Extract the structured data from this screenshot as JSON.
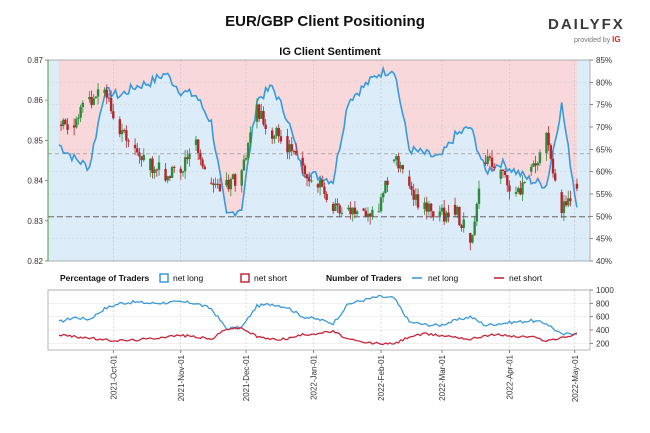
{
  "header": {
    "title": "EUR/GBP Client Positioning",
    "logo_text": "DAILYFX",
    "provided_by": "provided by",
    "provider": "IG"
  },
  "colors": {
    "net_long": "#3a9ad9",
    "net_short": "#c8263a",
    "long_fill": "#dcedf9",
    "short_fill": "#f8d8da",
    "candle_up": "#2e8b3a",
    "candle_down": "#b3262c",
    "axis_left": "#4a9a3a"
  },
  "chart_data": [
    {
      "type": "line",
      "title": "IG Client Sentiment",
      "description_series": [
        "EUR/GBP price (candlestick)",
        "net long %"
      ],
      "left_axis": {
        "ticks": [
          "0.87",
          "0.86",
          "0.85",
          "0.84",
          "0.83",
          "0.82"
        ],
        "ylim": [
          0.82,
          0.87
        ]
      },
      "right_axis": {
        "ticks": [
          "85%",
          "80%",
          "75%",
          "70%",
          "65%",
          "60%",
          "55%",
          "50%",
          "45%",
          "40%"
        ],
        "ylim": [
          40,
          85
        ]
      },
      "reference_lines": {
        "price": 0.831,
        "percent": 64
      },
      "price": {
        "weeks": [
          "2021-09-06",
          "2021-09-13",
          "2021-09-20",
          "2021-09-27",
          "2021-10-04",
          "2021-10-11",
          "2021-10-18",
          "2021-10-25",
          "2021-11-01",
          "2021-11-08",
          "2021-11-15",
          "2021-11-22",
          "2021-11-29",
          "2021-12-06",
          "2021-12-13",
          "2021-12-20",
          "2021-12-27",
          "2022-01-03",
          "2022-01-10",
          "2022-01-17",
          "2022-01-24",
          "2022-01-31",
          "2022-02-07",
          "2022-02-14",
          "2022-02-21",
          "2022-02-28",
          "2022-03-07",
          "2022-03-14",
          "2022-03-21",
          "2022-03-28",
          "2022-04-04",
          "2022-04-11",
          "2022-04-18",
          "2022-04-25",
          "2022-05-02"
        ],
        "close": [
          0.853,
          0.855,
          0.86,
          0.864,
          0.852,
          0.848,
          0.844,
          0.842,
          0.843,
          0.849,
          0.838,
          0.839,
          0.841,
          0.858,
          0.852,
          0.849,
          0.843,
          0.84,
          0.834,
          0.833,
          0.832,
          0.834,
          0.846,
          0.838,
          0.833,
          0.831,
          0.833,
          0.825,
          0.846,
          0.841,
          0.837,
          0.842,
          0.85,
          0.833,
          0.838
        ]
      },
      "net_long_pct": {
        "weeks": [
          "2021-09-06",
          "2021-09-13",
          "2021-09-20",
          "2021-09-27",
          "2021-10-04",
          "2021-10-11",
          "2021-10-18",
          "2021-10-25",
          "2021-11-01",
          "2021-11-08",
          "2021-11-15",
          "2021-11-22",
          "2021-11-29",
          "2021-12-06",
          "2021-12-13",
          "2021-12-20",
          "2021-12-27",
          "2022-01-03",
          "2022-01-10",
          "2022-01-17",
          "2022-01-24",
          "2022-01-31",
          "2022-02-07",
          "2022-02-14",
          "2022-02-21",
          "2022-02-28",
          "2022-03-07",
          "2022-03-14",
          "2022-03-21",
          "2022-03-28",
          "2022-04-04",
          "2022-04-11",
          "2022-04-18",
          "2022-04-25",
          "2022-05-02"
        ],
        "values": [
          66,
          63,
          61,
          78,
          77,
          79,
          80,
          82,
          78,
          77,
          71,
          50,
          52,
          76,
          79,
          72,
          60,
          59,
          58,
          76,
          79,
          82,
          83,
          65,
          64,
          63,
          68,
          70,
          60,
          62,
          60,
          58,
          57,
          75,
          52
        ]
      }
    },
    {
      "type": "line",
      "legend_groups": [
        {
          "title": "Percentage of Traders",
          "entries": [
            "net long",
            "net short"
          ]
        },
        {
          "title": "Number of Traders",
          "entries": [
            "net long",
            "net short"
          ]
        }
      ],
      "right_axis": {
        "ticks": [
          "1000",
          "800",
          "600",
          "400",
          "200"
        ],
        "ylim": [
          100,
          1000
        ]
      },
      "x_ticks": [
        "2021-Oct-01",
        "2021-Nov-01",
        "2021-Dec-01",
        "2022-Jan-01",
        "2022-Feb-01",
        "2022-Mar-01",
        "2022-Apr-01",
        "2022-May-01"
      ],
      "series": [
        {
          "name": "net long",
          "weeks": [
            "2021-09-06",
            "2021-09-13",
            "2021-09-20",
            "2021-09-27",
            "2021-10-04",
            "2021-10-11",
            "2021-10-18",
            "2021-10-25",
            "2021-11-01",
            "2021-11-08",
            "2021-11-15",
            "2021-11-22",
            "2021-11-29",
            "2021-12-06",
            "2021-12-13",
            "2021-12-20",
            "2021-12-27",
            "2022-01-03",
            "2022-01-10",
            "2022-01-17",
            "2022-01-24",
            "2022-01-31",
            "2022-02-07",
            "2022-02-14",
            "2022-02-21",
            "2022-02-28",
            "2022-03-07",
            "2022-03-14",
            "2022-03-21",
            "2022-03-28",
            "2022-04-04",
            "2022-04-11",
            "2022-04-18",
            "2022-04-25",
            "2022-05-02"
          ],
          "values": [
            520,
            590,
            560,
            720,
            800,
            820,
            800,
            810,
            820,
            800,
            720,
            420,
            440,
            760,
            790,
            740,
            600,
            560,
            500,
            790,
            850,
            900,
            880,
            520,
            480,
            470,
            540,
            600,
            470,
            500,
            520,
            540,
            500,
            330,
            360
          ]
        },
        {
          "name": "net short",
          "weeks": [
            "2021-09-06",
            "2021-09-13",
            "2021-09-20",
            "2021-09-27",
            "2021-10-04",
            "2021-10-11",
            "2021-10-18",
            "2021-10-25",
            "2021-11-01",
            "2021-11-08",
            "2021-11-15",
            "2021-11-22",
            "2021-11-29",
            "2021-12-06",
            "2021-12-13",
            "2021-12-20",
            "2021-12-27",
            "2022-01-03",
            "2022-01-10",
            "2022-01-17",
            "2022-01-24",
            "2022-01-31",
            "2022-02-07",
            "2022-02-14",
            "2022-02-21",
            "2022-02-28",
            "2022-03-07",
            "2022-03-14",
            "2022-03-21",
            "2022-03-28",
            "2022-04-04",
            "2022-04-11",
            "2022-04-18",
            "2022-04-25",
            "2022-05-02"
          ],
          "values": [
            330,
            300,
            280,
            250,
            240,
            250,
            270,
            300,
            320,
            300,
            260,
            420,
            430,
            300,
            260,
            270,
            330,
            350,
            380,
            260,
            210,
            200,
            190,
            300,
            340,
            320,
            300,
            260,
            320,
            330,
            300,
            300,
            240,
            280,
            340
          ]
        }
      ]
    }
  ]
}
